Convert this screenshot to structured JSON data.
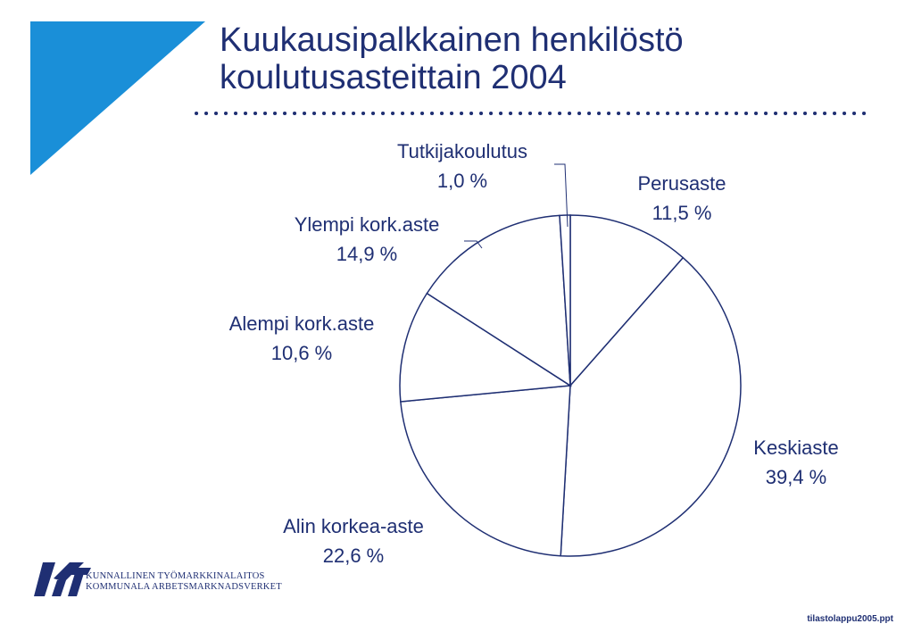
{
  "title_lines": [
    "Kuukausipalkkainen henkilöstö",
    "koulutusasteittain 2004"
  ],
  "chart_data": {
    "type": "pie",
    "title": "Kuukausipalkkainen henkilöstö koulutusasteittain 2004",
    "unit": "%",
    "slices": [
      {
        "label": "Perusaste",
        "value": 11.5,
        "value_label": "11,5 %"
      },
      {
        "label": "Keskiaste",
        "value": 39.4,
        "value_label": "39,4 %"
      },
      {
        "label": "Alin korkea-aste",
        "value": 22.6,
        "value_label": "22,6 %"
      },
      {
        "label": "Alempi kork.aste",
        "value": 10.6,
        "value_label": "10,6 %"
      },
      {
        "label": "Ylempi kork.aste",
        "value": 14.9,
        "value_label": "14,9 %"
      },
      {
        "label": "Tutkijakoulutus",
        "value": 1.0,
        "value_label": "1,0 %"
      }
    ],
    "start": "12 o'clock",
    "direction": "clockwise",
    "legend": "none"
  },
  "footer": {
    "org_line_1": "KUNNALLINEN TYÖMARKKINALAITOS",
    "org_line_2": "KOMMUNALA ARBETSMARKNADSVERKET",
    "file_name": "tilastolappu2005.ppt"
  },
  "colors": {
    "text": "#1f2f73",
    "accent": "#1a8fd8",
    "slice_fill": "#ffffff",
    "slice_stroke": "#1f2f73"
  }
}
